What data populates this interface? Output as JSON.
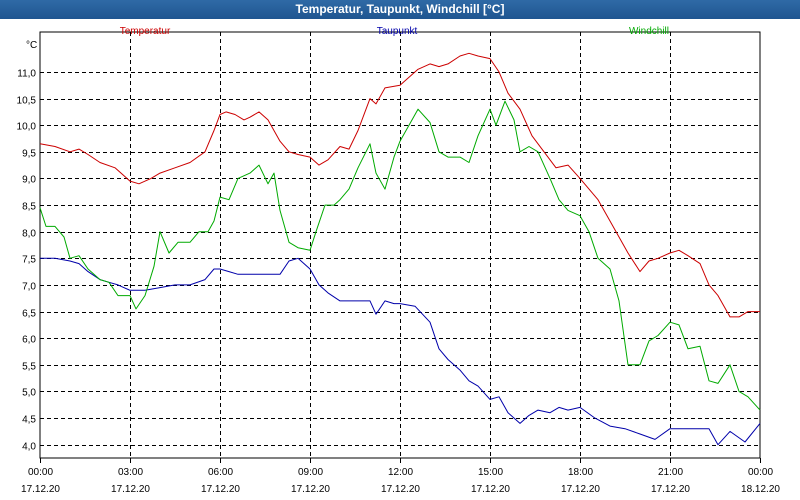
{
  "window": {
    "title": "Temperatur, Taupunkt, Windchill [°C]"
  },
  "chart_data": {
    "type": "line",
    "title": "Temperatur, Taupunkt, Windchill [°C]",
    "ylabel": "°C",
    "ylim": [
      3.75,
      11.75
    ],
    "xlim": [
      0,
      24
    ],
    "grid": true,
    "legend_position": "top",
    "x_ticks": [
      {
        "x": 0,
        "time": "00:00",
        "date": "17.12.20"
      },
      {
        "x": 3,
        "time": "03:00",
        "date": "17.12.20"
      },
      {
        "x": 6,
        "time": "06:00",
        "date": "17.12.20"
      },
      {
        "x": 9,
        "time": "09:00",
        "date": "17.12.20"
      },
      {
        "x": 12,
        "time": "12:00",
        "date": "17.12.20"
      },
      {
        "x": 15,
        "time": "15:00",
        "date": "17.12.20"
      },
      {
        "x": 18,
        "time": "18:00",
        "date": "17.12.20"
      },
      {
        "x": 21,
        "time": "21:00",
        "date": "17.12.20"
      },
      {
        "x": 24,
        "time": "00:00",
        "date": "18.12.20"
      }
    ],
    "y_ticks": [
      "4,0",
      "4,5",
      "5,0",
      "5,5",
      "6,0",
      "6,5",
      "7,0",
      "7,5",
      "8,0",
      "8,5",
      "9,0",
      "9,5",
      "10,0",
      "10,5",
      "11,0"
    ],
    "y_tick_values": [
      4.0,
      4.5,
      5.0,
      5.5,
      6.0,
      6.5,
      7.0,
      7.5,
      8.0,
      8.5,
      9.0,
      9.5,
      10.0,
      10.5,
      11.0
    ],
    "series": [
      {
        "name": "Temperatur",
        "color": "#cc0000",
        "x": [
          0,
          0.5,
          1,
          1.3,
          1.6,
          2,
          2.5,
          3,
          3.3,
          3.7,
          4,
          4.5,
          5,
          5.5,
          5.8,
          6,
          6.2,
          6.5,
          6.8,
          7,
          7.3,
          7.6,
          8,
          8.3,
          8.6,
          9,
          9.3,
          9.6,
          10,
          10.3,
          10.6,
          11,
          11.2,
          11.5,
          12,
          12.3,
          12.6,
          13,
          13.3,
          13.6,
          14,
          14.3,
          14.6,
          15,
          15.3,
          15.6,
          16,
          16.4,
          16.8,
          17.2,
          17.6,
          18,
          18.3,
          18.6,
          19,
          19.3,
          19.6,
          20,
          20.3,
          20.6,
          21,
          21.3,
          21.6,
          22,
          22.3,
          22.6,
          23,
          23.3,
          23.6,
          24
        ],
        "values": [
          9.65,
          9.6,
          9.5,
          9.55,
          9.45,
          9.3,
          9.2,
          8.95,
          8.9,
          9.0,
          9.1,
          9.2,
          9.3,
          9.5,
          9.9,
          10.2,
          10.25,
          10.2,
          10.1,
          10.15,
          10.25,
          10.1,
          9.7,
          9.5,
          9.45,
          9.4,
          9.25,
          9.35,
          9.6,
          9.55,
          9.9,
          10.5,
          10.4,
          10.7,
          10.75,
          10.9,
          11.05,
          11.15,
          11.1,
          11.15,
          11.3,
          11.35,
          11.3,
          11.25,
          11.0,
          10.6,
          10.3,
          9.8,
          9.5,
          9.2,
          9.25,
          9.0,
          8.8,
          8.6,
          8.2,
          7.9,
          7.6,
          7.25,
          7.45,
          7.5,
          7.6,
          7.65,
          7.55,
          7.4,
          7.0,
          6.8,
          6.4,
          6.4,
          6.5,
          6.5
        ]
      },
      {
        "name": "Taupunkt",
        "color": "#0000aa",
        "x": [
          0,
          0.5,
          1,
          1.3,
          1.6,
          2,
          2.3,
          2.6,
          3,
          3.5,
          4,
          4.5,
          5,
          5.5,
          5.8,
          6,
          6.3,
          6.6,
          7,
          7.5,
          8,
          8.3,
          8.6,
          9,
          9.3,
          9.6,
          10,
          10.5,
          11,
          11.2,
          11.5,
          11.8,
          12,
          12.5,
          13,
          13.3,
          13.6,
          14,
          14.3,
          14.6,
          15,
          15.3,
          15.6,
          16,
          16.3,
          16.6,
          17,
          17.3,
          17.6,
          18,
          18.5,
          19,
          19.5,
          20,
          20.5,
          21,
          21.5,
          22,
          22.3,
          22.6,
          23,
          23.5,
          24
        ],
        "values": [
          7.5,
          7.5,
          7.45,
          7.4,
          7.25,
          7.1,
          7.05,
          7.0,
          6.9,
          6.9,
          6.95,
          7.0,
          7.0,
          7.1,
          7.3,
          7.3,
          7.25,
          7.2,
          7.2,
          7.2,
          7.2,
          7.45,
          7.5,
          7.3,
          7.0,
          6.85,
          6.7,
          6.7,
          6.7,
          6.45,
          6.7,
          6.65,
          6.65,
          6.6,
          6.3,
          5.8,
          5.6,
          5.4,
          5.2,
          5.1,
          4.85,
          4.9,
          4.6,
          4.4,
          4.55,
          4.65,
          4.6,
          4.7,
          4.65,
          4.7,
          4.5,
          4.35,
          4.3,
          4.2,
          4.1,
          4.3,
          4.3,
          4.3,
          4.3,
          4.0,
          4.25,
          4.05,
          4.4
        ]
      },
      {
        "name": "Windchill",
        "color": "#00aa00",
        "x": [
          0,
          0.2,
          0.5,
          0.8,
          1,
          1.3,
          1.6,
          2,
          2.3,
          2.6,
          3,
          3.2,
          3.5,
          3.8,
          4,
          4.3,
          4.6,
          5,
          5.3,
          5.6,
          5.8,
          6,
          6.3,
          6.6,
          7,
          7.3,
          7.6,
          7.8,
          8,
          8.3,
          8.6,
          9,
          9.2,
          9.5,
          9.8,
          10,
          10.3,
          10.6,
          11,
          11.2,
          11.5,
          11.8,
          12,
          12.3,
          12.6,
          13,
          13.3,
          13.6,
          14,
          14.3,
          14.6,
          15,
          15.2,
          15.5,
          15.8,
          16,
          16.3,
          16.6,
          17,
          17.3,
          17.6,
          18,
          18.3,
          18.6,
          19,
          19.3,
          19.6,
          20,
          20.3,
          20.6,
          21,
          21.3,
          21.6,
          22,
          22.3,
          22.6,
          23,
          23.3,
          23.6,
          24
        ],
        "values": [
          8.45,
          8.1,
          8.1,
          7.9,
          7.5,
          7.55,
          7.3,
          7.1,
          7.05,
          6.8,
          6.8,
          6.55,
          6.8,
          7.35,
          8.0,
          7.6,
          7.8,
          7.8,
          8.0,
          8.0,
          8.2,
          8.65,
          8.6,
          9.0,
          9.1,
          9.25,
          8.9,
          9.1,
          8.4,
          7.8,
          7.7,
          7.65,
          8.0,
          8.5,
          8.5,
          8.6,
          8.8,
          9.2,
          9.65,
          9.1,
          8.8,
          9.4,
          9.7,
          10.0,
          10.3,
          10.05,
          9.5,
          9.4,
          9.4,
          9.3,
          9.8,
          10.3,
          10.0,
          10.45,
          10.1,
          9.5,
          9.6,
          9.5,
          9.0,
          8.6,
          8.4,
          8.3,
          8.0,
          7.5,
          7.3,
          6.7,
          5.5,
          5.5,
          5.95,
          6.05,
          6.3,
          6.25,
          5.8,
          5.85,
          5.2,
          5.15,
          5.5,
          5.0,
          4.9,
          4.65
        ]
      }
    ]
  }
}
